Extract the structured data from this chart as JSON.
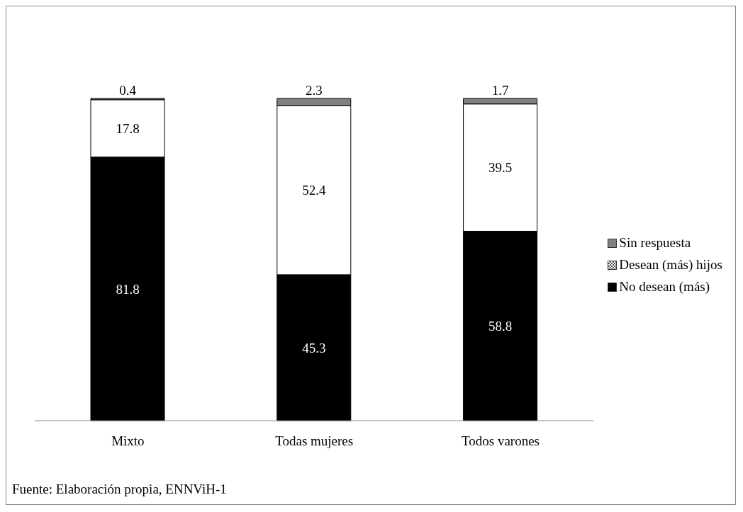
{
  "chart_data": {
    "type": "bar",
    "stacked": true,
    "data_labels": true,
    "legend": "right",
    "categories": [
      "Mixto",
      "Todas mujeres",
      "Todos varones"
    ],
    "series": [
      {
        "name": "No desean (más)",
        "color": "#000000",
        "values": [
          81.8,
          45.3,
          58.8
        ]
      },
      {
        "name": "Desean (más) hijos",
        "color": "#ffffff",
        "values": [
          17.8,
          52.4,
          39.5
        ]
      },
      {
        "name": "Sin respuesta",
        "color": "#808080",
        "values": [
          0.4,
          2.3,
          1.7
        ]
      }
    ],
    "annotations": [
      "Fuente: Elaboración propia, ENNViH-1"
    ]
  }
}
